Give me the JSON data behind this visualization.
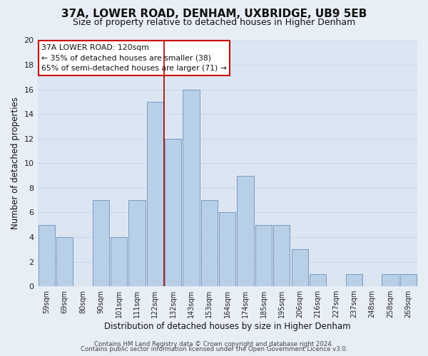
{
  "title": "37A, LOWER ROAD, DENHAM, UXBRIDGE, UB9 5EB",
  "subtitle": "Size of property relative to detached houses in Higher Denham",
  "xlabel": "Distribution of detached houses by size in Higher Denham",
  "ylabel": "Number of detached properties",
  "categories": [
    "59sqm",
    "69sqm",
    "80sqm",
    "90sqm",
    "101sqm",
    "111sqm",
    "122sqm",
    "132sqm",
    "143sqm",
    "153sqm",
    "164sqm",
    "174sqm",
    "185sqm",
    "195sqm",
    "206sqm",
    "216sqm",
    "227sqm",
    "237sqm",
    "248sqm",
    "258sqm",
    "269sqm"
  ],
  "values": [
    5,
    4,
    0,
    7,
    4,
    7,
    15,
    12,
    16,
    7,
    6,
    9,
    5,
    5,
    3,
    1,
    0,
    1,
    0,
    1,
    1
  ],
  "bar_color": "#b8cfe8",
  "vline_x": 6.5,
  "vline_color": "#aa0000",
  "ylim": [
    0,
    20
  ],
  "yticks": [
    0,
    2,
    4,
    6,
    8,
    10,
    12,
    14,
    16,
    18,
    20
  ],
  "annotation_title": "37A LOWER ROAD: 120sqm",
  "annotation_line1": "← 35% of detached houses are smaller (38)",
  "annotation_line2": "65% of semi-detached houses are larger (71) →",
  "annotation_box_color": "#ffffff",
  "annotation_box_edge": "#cc0000",
  "footer1": "Contains HM Land Registry data © Crown copyright and database right 2024.",
  "footer2": "Contains public sector information licensed under the Open Government Licence v3.0.",
  "bg_color": "#e8eef6",
  "plot_bg_color": "#dce6f2",
  "title_fontsize": 11,
  "subtitle_fontsize": 9,
  "grid_color": "#c8d8ec",
  "grid_linewidth": 0.8
}
